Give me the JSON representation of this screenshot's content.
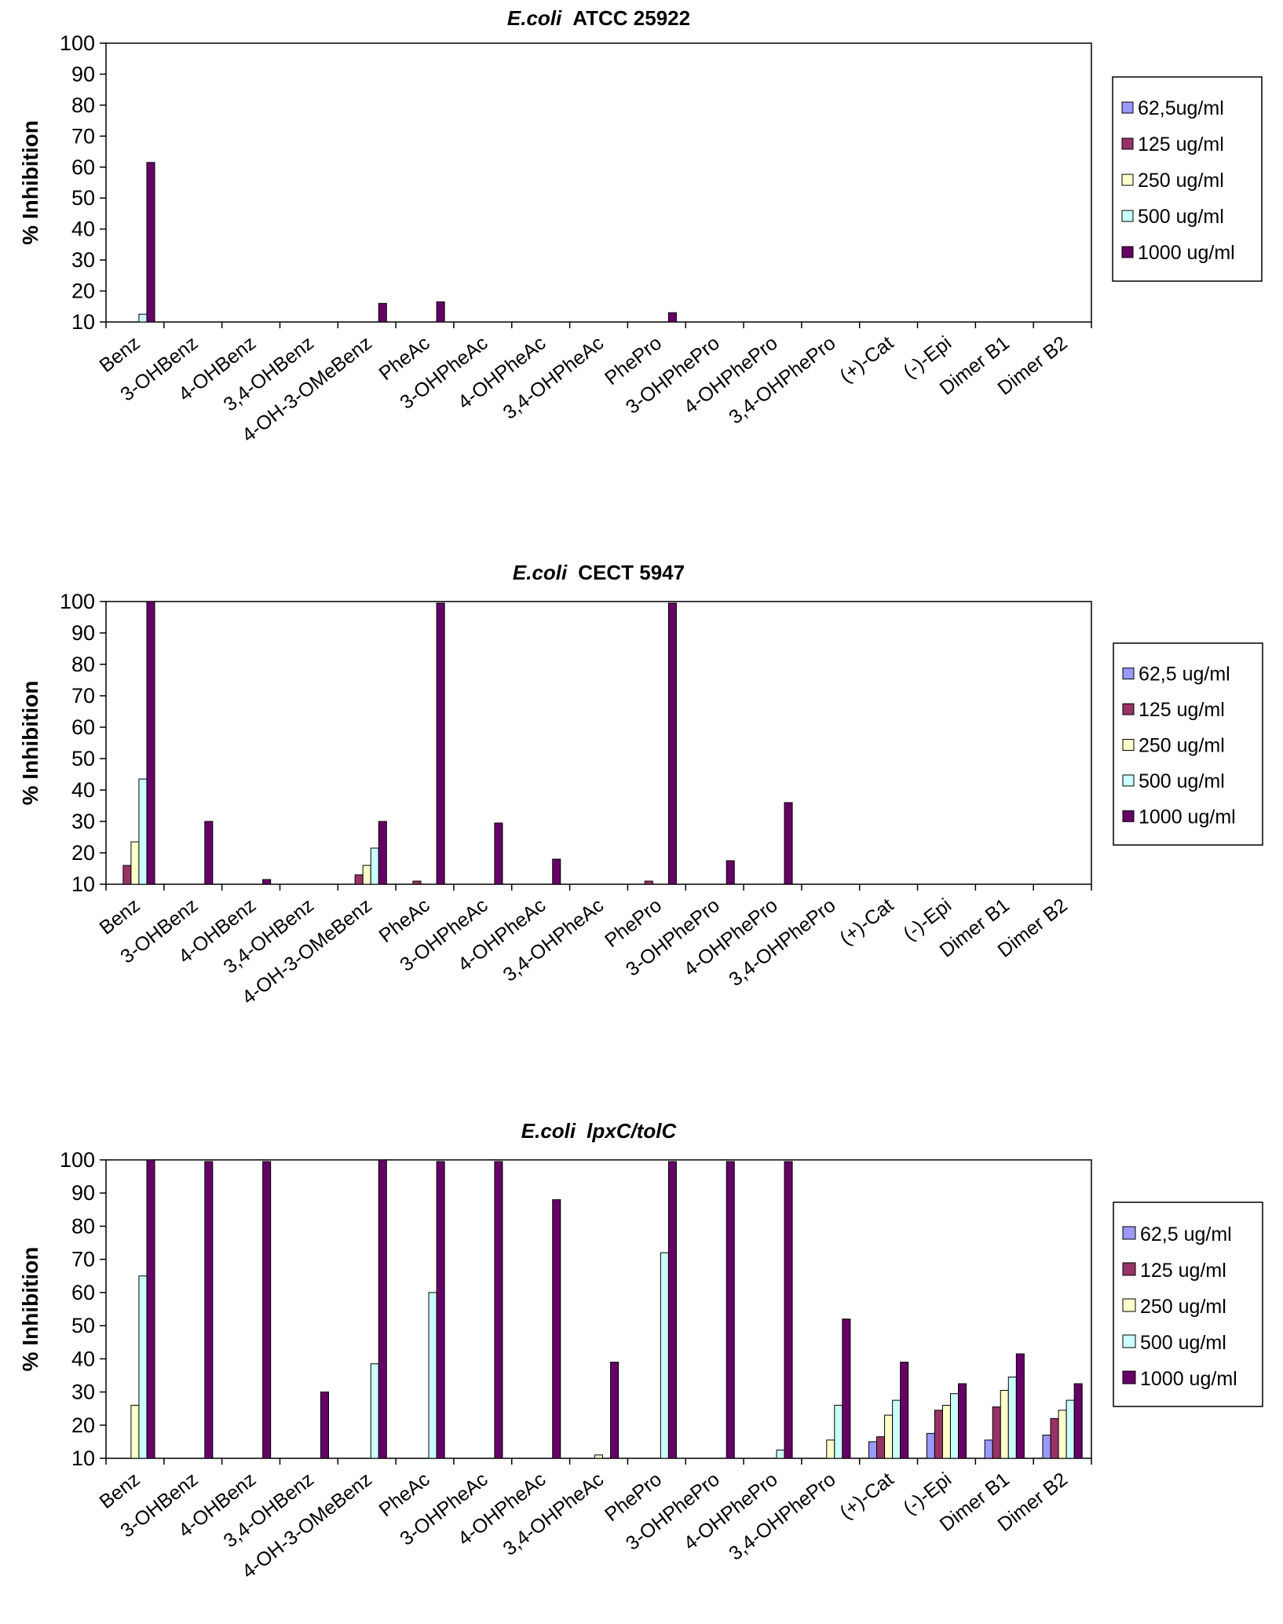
{
  "chart_data": [
    {
      "type": "bar",
      "title_italic": "E.coli",
      "title_rest": "ATCC 25922",
      "xlabel": "",
      "ylabel": "% Inhibition",
      "ylim": [
        10,
        100
      ],
      "yticks": [
        10,
        20,
        30,
        40,
        50,
        60,
        70,
        80,
        90,
        100
      ],
      "grid": false,
      "legend_position": "right",
      "categories": [
        "Benz",
        "3-OHBenz",
        "4-OHBenz",
        "3,4-OHBenz",
        "4-OH-3-OMeBenz",
        "PheAc",
        "3-OHPheAc",
        "4-OHPheAc",
        "3,4-OHPheAc",
        "PhePro",
        "3-OHPhePro",
        "4-OHPhePro",
        "3,4-OHPhePro",
        "(+)-Cat",
        "(-)-Epi",
        "Dimer B1",
        "Dimer B2"
      ],
      "series": [
        {
          "name": "62,5ug/ml",
          "color": "#9999ff",
          "values": [
            null,
            null,
            null,
            null,
            null,
            null,
            null,
            null,
            null,
            null,
            null,
            null,
            null,
            null,
            null,
            null,
            null
          ]
        },
        {
          "name": "125 ug/ml",
          "color": "#993366",
          "values": [
            null,
            null,
            null,
            null,
            null,
            null,
            null,
            null,
            null,
            null,
            null,
            null,
            null,
            null,
            null,
            null,
            null
          ]
        },
        {
          "name": "250 ug/ml",
          "color": "#ffffcc",
          "values": [
            null,
            null,
            null,
            null,
            null,
            null,
            null,
            null,
            null,
            null,
            null,
            null,
            null,
            null,
            null,
            null,
            null
          ]
        },
        {
          "name": "500 ug/ml",
          "color": "#ccffff",
          "values": [
            12.5,
            null,
            null,
            null,
            null,
            null,
            null,
            null,
            null,
            null,
            null,
            null,
            null,
            null,
            null,
            null,
            null
          ]
        },
        {
          "name": "1000 ug/ml",
          "color": "#660066",
          "values": [
            61.5,
            null,
            null,
            null,
            16,
            16.5,
            null,
            null,
            null,
            13,
            null,
            null,
            null,
            null,
            null,
            null,
            null
          ]
        }
      ]
    },
    {
      "type": "bar",
      "title_italic": "E.coli",
      "title_rest": "CECT 5947",
      "xlabel": "",
      "ylabel": "% Inhibition",
      "ylim": [
        10,
        100
      ],
      "yticks": [
        10,
        20,
        30,
        40,
        50,
        60,
        70,
        80,
        90,
        100
      ],
      "grid": false,
      "legend_position": "right",
      "categories": [
        "Benz",
        "3-OHBenz",
        "4-OHBenz",
        "3,4-OHBenz",
        "4-OH-3-OMeBenz",
        "PheAc",
        "3-OHPheAc",
        "4-OHPheAc",
        "3,4-OHPheAc",
        "PhePro",
        "3-OHPhePro",
        "4-OHPhePro",
        "3,4-OHPhePro",
        "(+)-Cat",
        "(-)-Epi",
        "Dimer B1",
        "Dimer B2"
      ],
      "series": [
        {
          "name": "62,5 ug/ml",
          "color": "#9999ff",
          "values": [
            null,
            null,
            null,
            null,
            null,
            null,
            null,
            null,
            null,
            null,
            null,
            null,
            null,
            null,
            null,
            null,
            null
          ]
        },
        {
          "name": "125 ug/ml",
          "color": "#993366",
          "values": [
            16,
            null,
            null,
            null,
            13,
            11,
            null,
            null,
            null,
            11,
            null,
            null,
            null,
            null,
            null,
            null,
            null
          ]
        },
        {
          "name": "250 ug/ml",
          "color": "#ffffcc",
          "values": [
            23.5,
            null,
            null,
            null,
            16,
            null,
            null,
            null,
            null,
            null,
            null,
            null,
            null,
            null,
            null,
            null,
            null
          ]
        },
        {
          "name": "500 ug/ml",
          "color": "#ccffff",
          "values": [
            43.5,
            null,
            null,
            null,
            21.5,
            null,
            null,
            null,
            null,
            null,
            null,
            null,
            null,
            null,
            null,
            null,
            null
          ]
        },
        {
          "name": "1000 ug/ml",
          "color": "#660066",
          "values": [
            100,
            30,
            11.5,
            null,
            30,
            99.5,
            29.5,
            18,
            null,
            99.5,
            17.5,
            36,
            null,
            null,
            null,
            null,
            null
          ]
        }
      ]
    },
    {
      "type": "bar",
      "title_italic": "E.coli",
      "title_rest": "lpxC/tolC",
      "title_rest_italic": true,
      "xlabel": "",
      "ylabel": "% Inhibition",
      "ylim": [
        10,
        100
      ],
      "yticks": [
        10,
        20,
        30,
        40,
        50,
        60,
        70,
        80,
        90,
        100
      ],
      "grid": false,
      "legend_position": "right",
      "categories": [
        "Benz",
        "3-OHBenz",
        "4-OHBenz",
        "3,4-OHBenz",
        "4-OH-3-OMeBenz",
        "PheAc",
        "3-OHPheAc",
        "4-OHPheAc",
        "3,4-OHPheAc",
        "PhePro",
        "3-OHPhePro",
        "4-OHPhePro",
        "3,4-OHPhePro",
        "(+)-Cat",
        "(-)-Epi",
        "Dimer B1",
        "Dimer B2"
      ],
      "series": [
        {
          "name": "62,5 ug/ml",
          "color": "#9999ff",
          "values": [
            null,
            null,
            null,
            null,
            null,
            null,
            null,
            null,
            null,
            null,
            null,
            null,
            null,
            15,
            17.5,
            15.5,
            17
          ]
        },
        {
          "name": "125 ug/ml",
          "color": "#993366",
          "values": [
            null,
            null,
            null,
            null,
            null,
            null,
            null,
            null,
            null,
            null,
            null,
            null,
            null,
            16.5,
            24.5,
            25.5,
            22
          ]
        },
        {
          "name": "250 ug/ml",
          "color": "#ffffcc",
          "values": [
            26,
            null,
            null,
            null,
            null,
            null,
            null,
            null,
            11,
            null,
            null,
            null,
            15.5,
            23,
            26,
            30.5,
            24.5
          ]
        },
        {
          "name": "500 ug/ml",
          "color": "#ccffff",
          "values": [
            65,
            null,
            null,
            null,
            38.5,
            60,
            null,
            null,
            null,
            72,
            null,
            12.5,
            26,
            27.5,
            29.5,
            34.5,
            27.5
          ]
        },
        {
          "name": "1000 ug/ml",
          "color": "#660066",
          "values": [
            100,
            99.5,
            99.5,
            30,
            100,
            99.5,
            99.5,
            88,
            39,
            99.5,
            99.5,
            99.5,
            52,
            39,
            32.5,
            41.5,
            32.5
          ]
        }
      ]
    }
  ]
}
